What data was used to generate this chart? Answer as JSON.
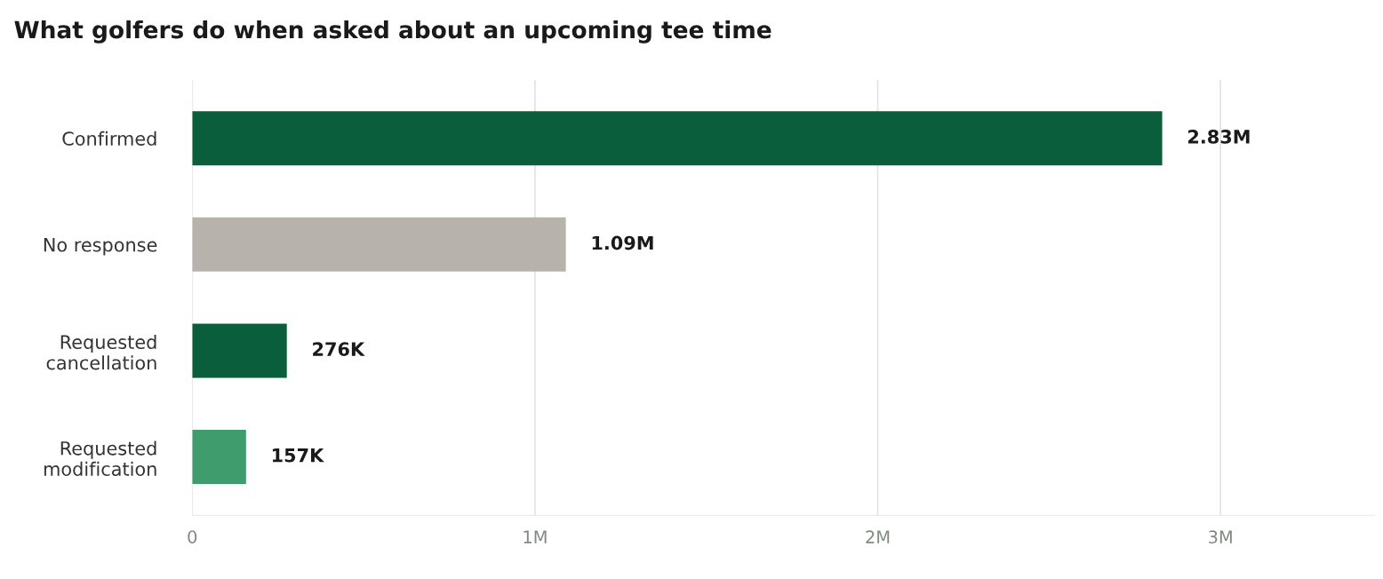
{
  "chart_data": {
    "type": "bar",
    "orientation": "horizontal",
    "title": "What golfers do when asked about an upcoming tee time",
    "categories": [
      "Confirmed",
      "No response",
      "Requested\ncancellation",
      "Requested\nmodification"
    ],
    "values": [
      2830000,
      1090000,
      276000,
      157000
    ],
    "colors": [
      "#0b5e3b",
      "#b7b3ac",
      "#0b5e3b",
      "#3f9c6d"
    ],
    "value_labels": [
      "2.83M",
      "1.09M",
      "276K",
      "157K"
    ],
    "xlim": [
      0,
      3450000
    ],
    "xticks": [
      0,
      {
        "value": 1000000,
        "label": "1M"
      },
      {
        "value": 2000000,
        "label": "2M"
      },
      {
        "value": 3000000,
        "label": "3M"
      }
    ],
    "grid": "x",
    "legend": false
  }
}
